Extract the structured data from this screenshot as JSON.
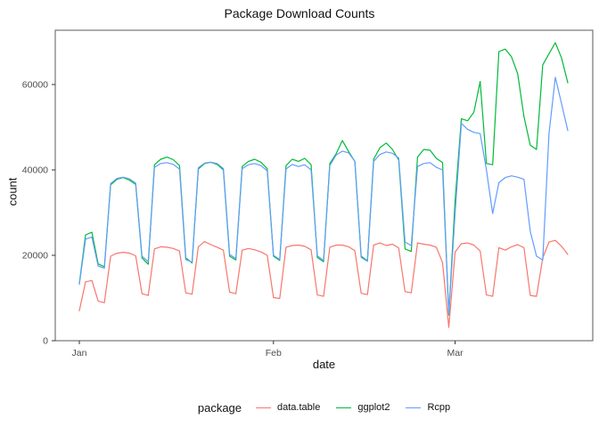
{
  "title": "Package Download Counts",
  "axes": {
    "x_label": "date",
    "y_label": "count",
    "x_ticks": [
      {
        "label": "Jan",
        "day": 0
      },
      {
        "label": "Feb",
        "day": 31
      },
      {
        "label": "Mar",
        "day": 60
      }
    ],
    "y_ticks": [
      0,
      20000,
      40000,
      60000
    ],
    "tick_color": "#4d4d4d",
    "panel_border_color": "#595959"
  },
  "legend": {
    "title": "package",
    "items": [
      {
        "label": "data.table",
        "color": "#F8766D"
      },
      {
        "label": "ggplot2",
        "color": "#00BA38"
      },
      {
        "label": "Rcpp",
        "color": "#619CFF"
      }
    ]
  },
  "chart_data": {
    "type": "line",
    "title": "Package Download Counts",
    "xlabel": "date",
    "ylabel": "count",
    "x_unit": "day index (daily data, day 0 = Jan 1; ticks at Jan=0, Feb=31, Mar=60)",
    "ylim": [
      0,
      72700
    ],
    "xlim_days": [
      -3.85,
      82.0
    ],
    "grid": false,
    "legend_position": "bottom",
    "series": [
      {
        "name": "data.table",
        "color": "#F8766D",
        "values": [
          7000,
          13800,
          14100,
          9300,
          8900,
          19800,
          20500,
          20700,
          20500,
          19900,
          11000,
          10600,
          21500,
          22000,
          21900,
          21600,
          21000,
          11200,
          10900,
          22000,
          23200,
          22500,
          21900,
          21200,
          11400,
          11000,
          21200,
          21600,
          21300,
          20800,
          20000,
          10100,
          9900,
          21900,
          22300,
          22400,
          22100,
          21300,
          10700,
          10400,
          21900,
          22400,
          22400,
          22000,
          21100,
          11100,
          10800,
          22400,
          22900,
          22300,
          22600,
          21700,
          11500,
          11200,
          22900,
          22600,
          22400,
          21900,
          18300,
          3100,
          20800,
          22700,
          22900,
          22400,
          21000,
          10700,
          10400,
          21800,
          21200,
          22000,
          22500,
          21800,
          10600,
          10400,
          19400,
          23100,
          23500,
          22100,
          20200
        ]
      },
      {
        "name": "ggplot2",
        "color": "#00BA38",
        "values": [
          13400,
          24800,
          25400,
          18000,
          17300,
          36500,
          37800,
          38200,
          37600,
          36600,
          19400,
          17900,
          41200,
          42500,
          43000,
          42400,
          41000,
          19400,
          18200,
          40200,
          41500,
          41800,
          41300,
          40000,
          19800,
          18900,
          40800,
          42000,
          42500,
          41800,
          40300,
          19800,
          18800,
          41000,
          42500,
          42000,
          42700,
          41200,
          19500,
          18500,
          41500,
          43800,
          46900,
          44300,
          42000,
          19800,
          18700,
          42500,
          45200,
          46300,
          44800,
          42300,
          21500,
          20900,
          43000,
          44800,
          44600,
          42700,
          41700,
          6000,
          33000,
          52000,
          51500,
          53500,
          60700,
          41500,
          41200,
          67700,
          68300,
          66500,
          62500,
          52500,
          45800,
          44800,
          64600,
          67200,
          69800,
          66200,
          60400
        ]
      },
      {
        "name": "Rcpp",
        "color": "#619CFF",
        "values": [
          13200,
          23800,
          24300,
          17500,
          17000,
          36800,
          38000,
          38300,
          37900,
          36900,
          19800,
          18500,
          40600,
          41500,
          41700,
          41300,
          40200,
          19000,
          18400,
          40500,
          41600,
          41800,
          41500,
          40300,
          20200,
          19200,
          40300,
          41200,
          41500,
          41000,
          39800,
          20000,
          19000,
          40200,
          41300,
          40800,
          41200,
          40000,
          19900,
          18800,
          41000,
          43500,
          44400,
          44000,
          42000,
          19500,
          18600,
          42000,
          43600,
          44200,
          43900,
          42800,
          23100,
          22300,
          40800,
          41500,
          41700,
          40600,
          40000,
          6250,
          30000,
          50900,
          49500,
          48800,
          48500,
          40000,
          29800,
          37000,
          38200,
          38600,
          38300,
          37800,
          25600,
          19800,
          18900,
          48500,
          61700,
          55500,
          49200
        ]
      }
    ]
  }
}
